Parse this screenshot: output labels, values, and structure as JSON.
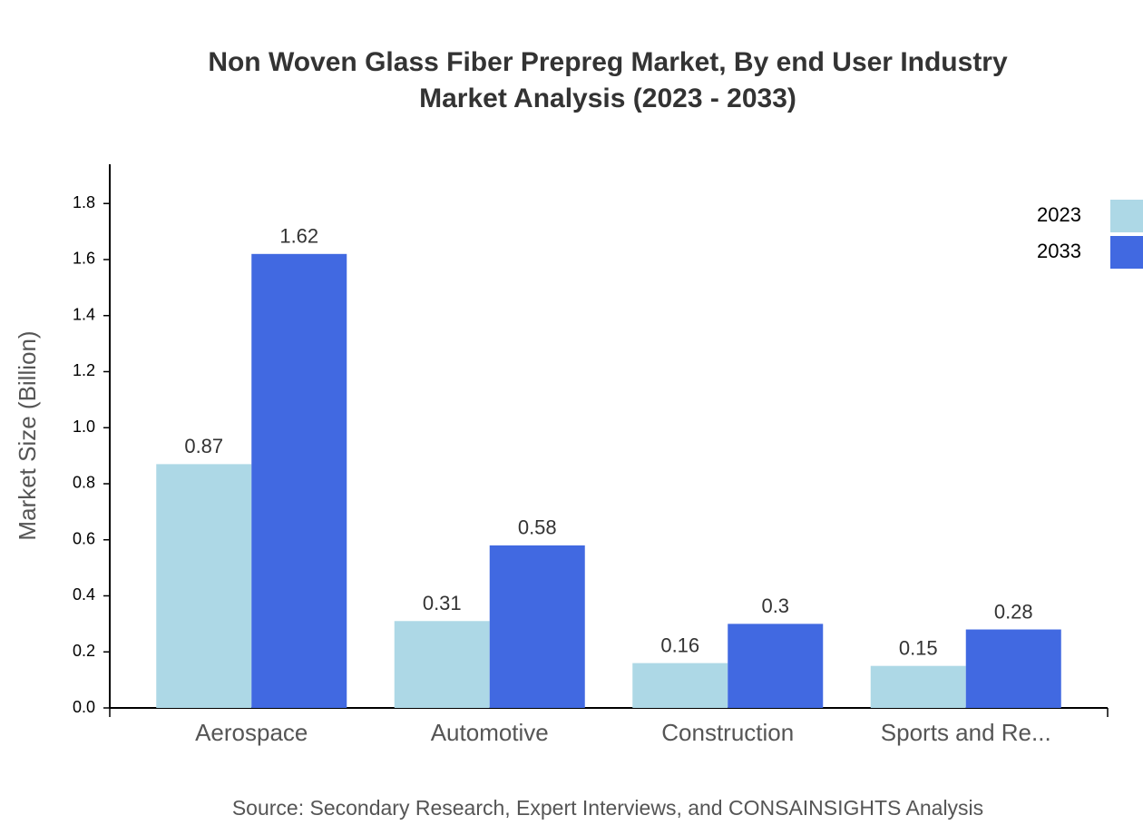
{
  "chart_data": {
    "type": "bar",
    "title": "Non Woven Glass Fiber Prepreg Market, By end User Industry",
    "subtitle": "Market Analysis (2023 - 2033)",
    "y_label": "Market Size (Billion)",
    "source": "Source: Secondary Research, Expert Interviews, and CONSAINSIGHTS Analysis",
    "categories": [
      "Aerospace",
      "Automotive",
      "Construction",
      "Sports and Re..."
    ],
    "series": [
      {
        "name": "2023",
        "color": "#add8e6",
        "values": [
          0.87,
          0.31,
          0.16,
          0.15
        ]
      },
      {
        "name": "2033",
        "color": "#4169e1",
        "values": [
          1.62,
          0.58,
          0.3,
          0.28
        ]
      }
    ],
    "ylim": [
      0,
      1.94
    ],
    "yticks": [
      {
        "value": 0,
        "label": "0.0"
      },
      0.2,
      0.4,
      0.6,
      0.8,
      {
        "value": 1,
        "label": "1.0"
      },
      1.2,
      1.4,
      1.6,
      1.8
    ],
    "legend": "top-right"
  }
}
